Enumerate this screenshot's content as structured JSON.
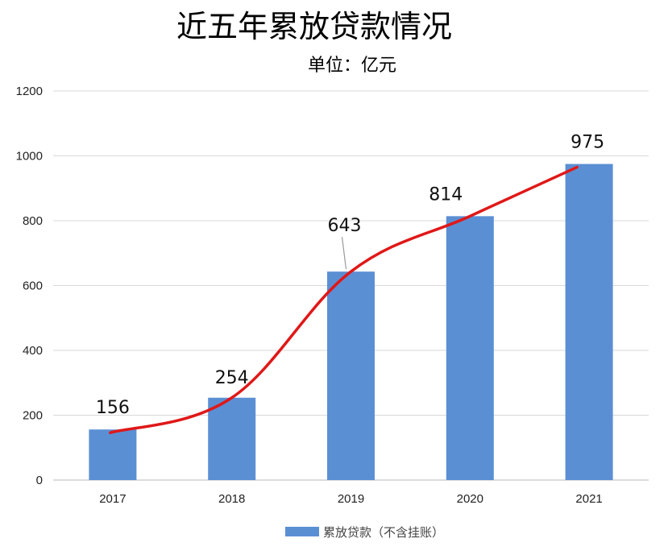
{
  "chart_data": {
    "type": "bar",
    "title": "近五年累放贷款情况",
    "subtitle": "单位：亿元",
    "categories": [
      "2017",
      "2018",
      "2019",
      "2020",
      "2021"
    ],
    "series": [
      {
        "name": "累放贷款（不含挂账）",
        "values": [
          156,
          254,
          643,
          814,
          975
        ],
        "color": "#5b8fd4"
      }
    ],
    "data_labels": [
      "156",
      "254",
      "643",
      "814",
      "975"
    ],
    "y_ticks": [
      "0",
      "200",
      "400",
      "600",
      "800",
      "1000",
      "1200"
    ],
    "ylim": [
      0,
      1200
    ],
    "grid": true,
    "legend_position": "bottom",
    "trend_line_color": "#e01818"
  }
}
